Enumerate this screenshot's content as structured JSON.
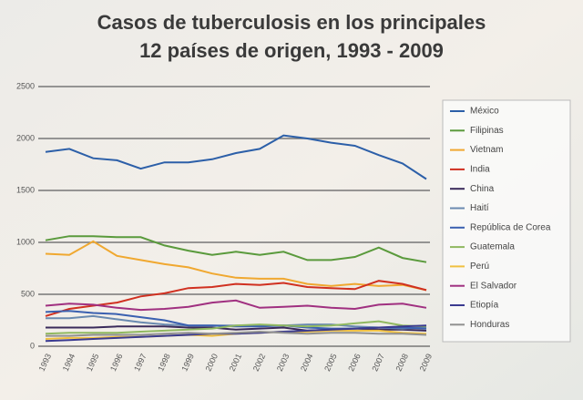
{
  "chart_data": {
    "type": "line",
    "title": [
      "Casos de tuberculosis en los principales",
      "12 países de origen, 1993 - 2009"
    ],
    "categories": [
      "1993",
      "1994",
      "1995",
      "1996",
      "1997",
      "1998",
      "1999",
      "2000",
      "2001",
      "2002",
      "2003",
      "2004",
      "2005",
      "2006",
      "2007",
      "2008",
      "2009"
    ],
    "ylim": [
      0,
      2500
    ],
    "yticks": [
      0,
      500,
      1000,
      1500,
      2000,
      2500
    ],
    "grid": true,
    "series": [
      {
        "name": "México",
        "color": "#2c5fa8",
        "values": [
          1870,
          1900,
          1810,
          1790,
          1710,
          1770,
          1770,
          1800,
          1860,
          1900,
          2030,
          2000,
          1960,
          1930,
          1840,
          1760,
          1610
        ]
      },
      {
        "name": "Filipinas",
        "color": "#5a9a3c",
        "values": [
          1020,
          1060,
          1060,
          1050,
          1050,
          970,
          920,
          880,
          910,
          880,
          910,
          830,
          830,
          860,
          950,
          850,
          810
        ]
      },
      {
        "name": "Vietnam",
        "color": "#f0a830",
        "values": [
          890,
          880,
          1010,
          870,
          830,
          790,
          760,
          700,
          660,
          650,
          650,
          600,
          580,
          600,
          580,
          590,
          540
        ]
      },
      {
        "name": "India",
        "color": "#d03020",
        "values": [
          290,
          360,
          390,
          420,
          480,
          510,
          560,
          570,
          600,
          590,
          610,
          570,
          560,
          550,
          630,
          600,
          540
        ]
      },
      {
        "name": "China",
        "color": "#3a2a5a",
        "values": [
          180,
          180,
          180,
          190,
          190,
          190,
          180,
          180,
          160,
          170,
          180,
          150,
          160,
          170,
          160,
          160,
          150
        ]
      },
      {
        "name": "Haití",
        "color": "#6a8ab0",
        "values": [
          270,
          270,
          290,
          260,
          230,
          210,
          200,
          200,
          200,
          200,
          200,
          210,
          210,
          190,
          180,
          170,
          180
        ]
      },
      {
        "name": "República de Corea",
        "color": "#3a60b0",
        "values": [
          330,
          340,
          320,
          310,
          280,
          250,
          200,
          200,
          190,
          190,
          200,
          180,
          170,
          170,
          180,
          180,
          170
        ]
      },
      {
        "name": "Guatemala",
        "color": "#90b860",
        "values": [
          120,
          130,
          130,
          130,
          140,
          150,
          160,
          170,
          200,
          210,
          200,
          190,
          200,
          220,
          240,
          200,
          190
        ]
      },
      {
        "name": "Perú",
        "color": "#f0c040",
        "values": [
          70,
          80,
          80,
          90,
          90,
          100,
          110,
          100,
          120,
          130,
          140,
          140,
          150,
          150,
          150,
          130,
          120
        ]
      },
      {
        "name": "El Salvador",
        "color": "#a03080",
        "values": [
          390,
          410,
          400,
          370,
          350,
          360,
          380,
          420,
          440,
          370,
          380,
          390,
          370,
          360,
          400,
          410,
          370
        ]
      },
      {
        "name": "Etiopía",
        "color": "#3a3a90",
        "values": [
          50,
          60,
          70,
          80,
          90,
          100,
          110,
          120,
          120,
          130,
          140,
          150,
          160,
          170,
          180,
          190,
          200
        ]
      },
      {
        "name": "Honduras",
        "color": "#909090",
        "values": [
          100,
          100,
          110,
          110,
          110,
          120,
          130,
          120,
          130,
          140,
          130,
          120,
          130,
          130,
          120,
          120,
          110
        ]
      }
    ]
  }
}
